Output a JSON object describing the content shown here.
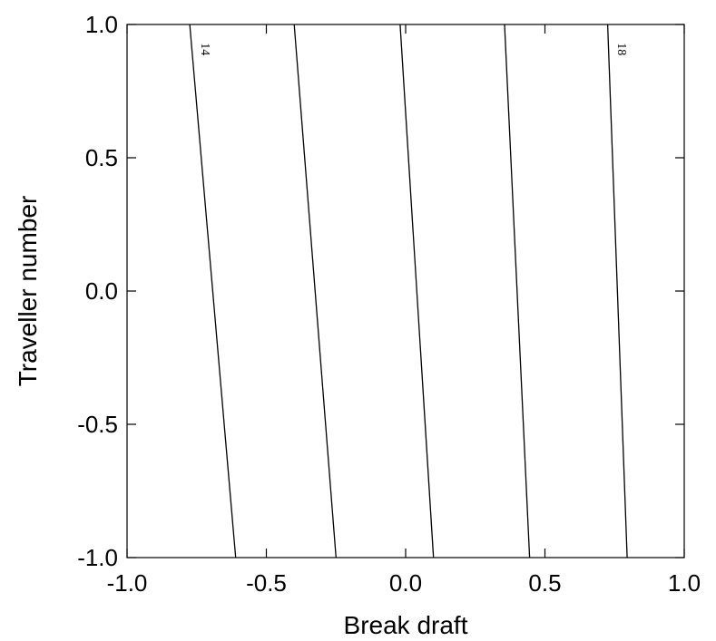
{
  "chart_data": {
    "type": "contour",
    "xlabel": "Break draft",
    "ylabel": "Traveller number",
    "xlim": [
      -1.0,
      1.0
    ],
    "ylim": [
      -1.0,
      1.0
    ],
    "x_ticks": [
      "-1.0",
      "-0.5",
      "0.0",
      "0.5",
      "1.0"
    ],
    "y_ticks": [
      "-1.0",
      "-0.5",
      "0.0",
      "0.5",
      "1.0"
    ],
    "grid": false,
    "contours": [
      {
        "label": "14",
        "points": [
          [
            -0.775,
            1.0
          ],
          [
            -0.61,
            -1.0
          ]
        ]
      },
      {
        "label": "",
        "points": [
          [
            -0.4,
            1.0
          ],
          [
            -0.25,
            -1.0
          ]
        ]
      },
      {
        "label": "",
        "points": [
          [
            -0.02,
            1.0
          ],
          [
            0.1,
            -1.0
          ]
        ]
      },
      {
        "label": "",
        "points": [
          [
            0.355,
            1.0
          ],
          [
            0.445,
            -1.0
          ]
        ]
      },
      {
        "label": "18",
        "points": [
          [
            0.725,
            1.0
          ],
          [
            0.795,
            -1.0
          ]
        ]
      }
    ]
  }
}
